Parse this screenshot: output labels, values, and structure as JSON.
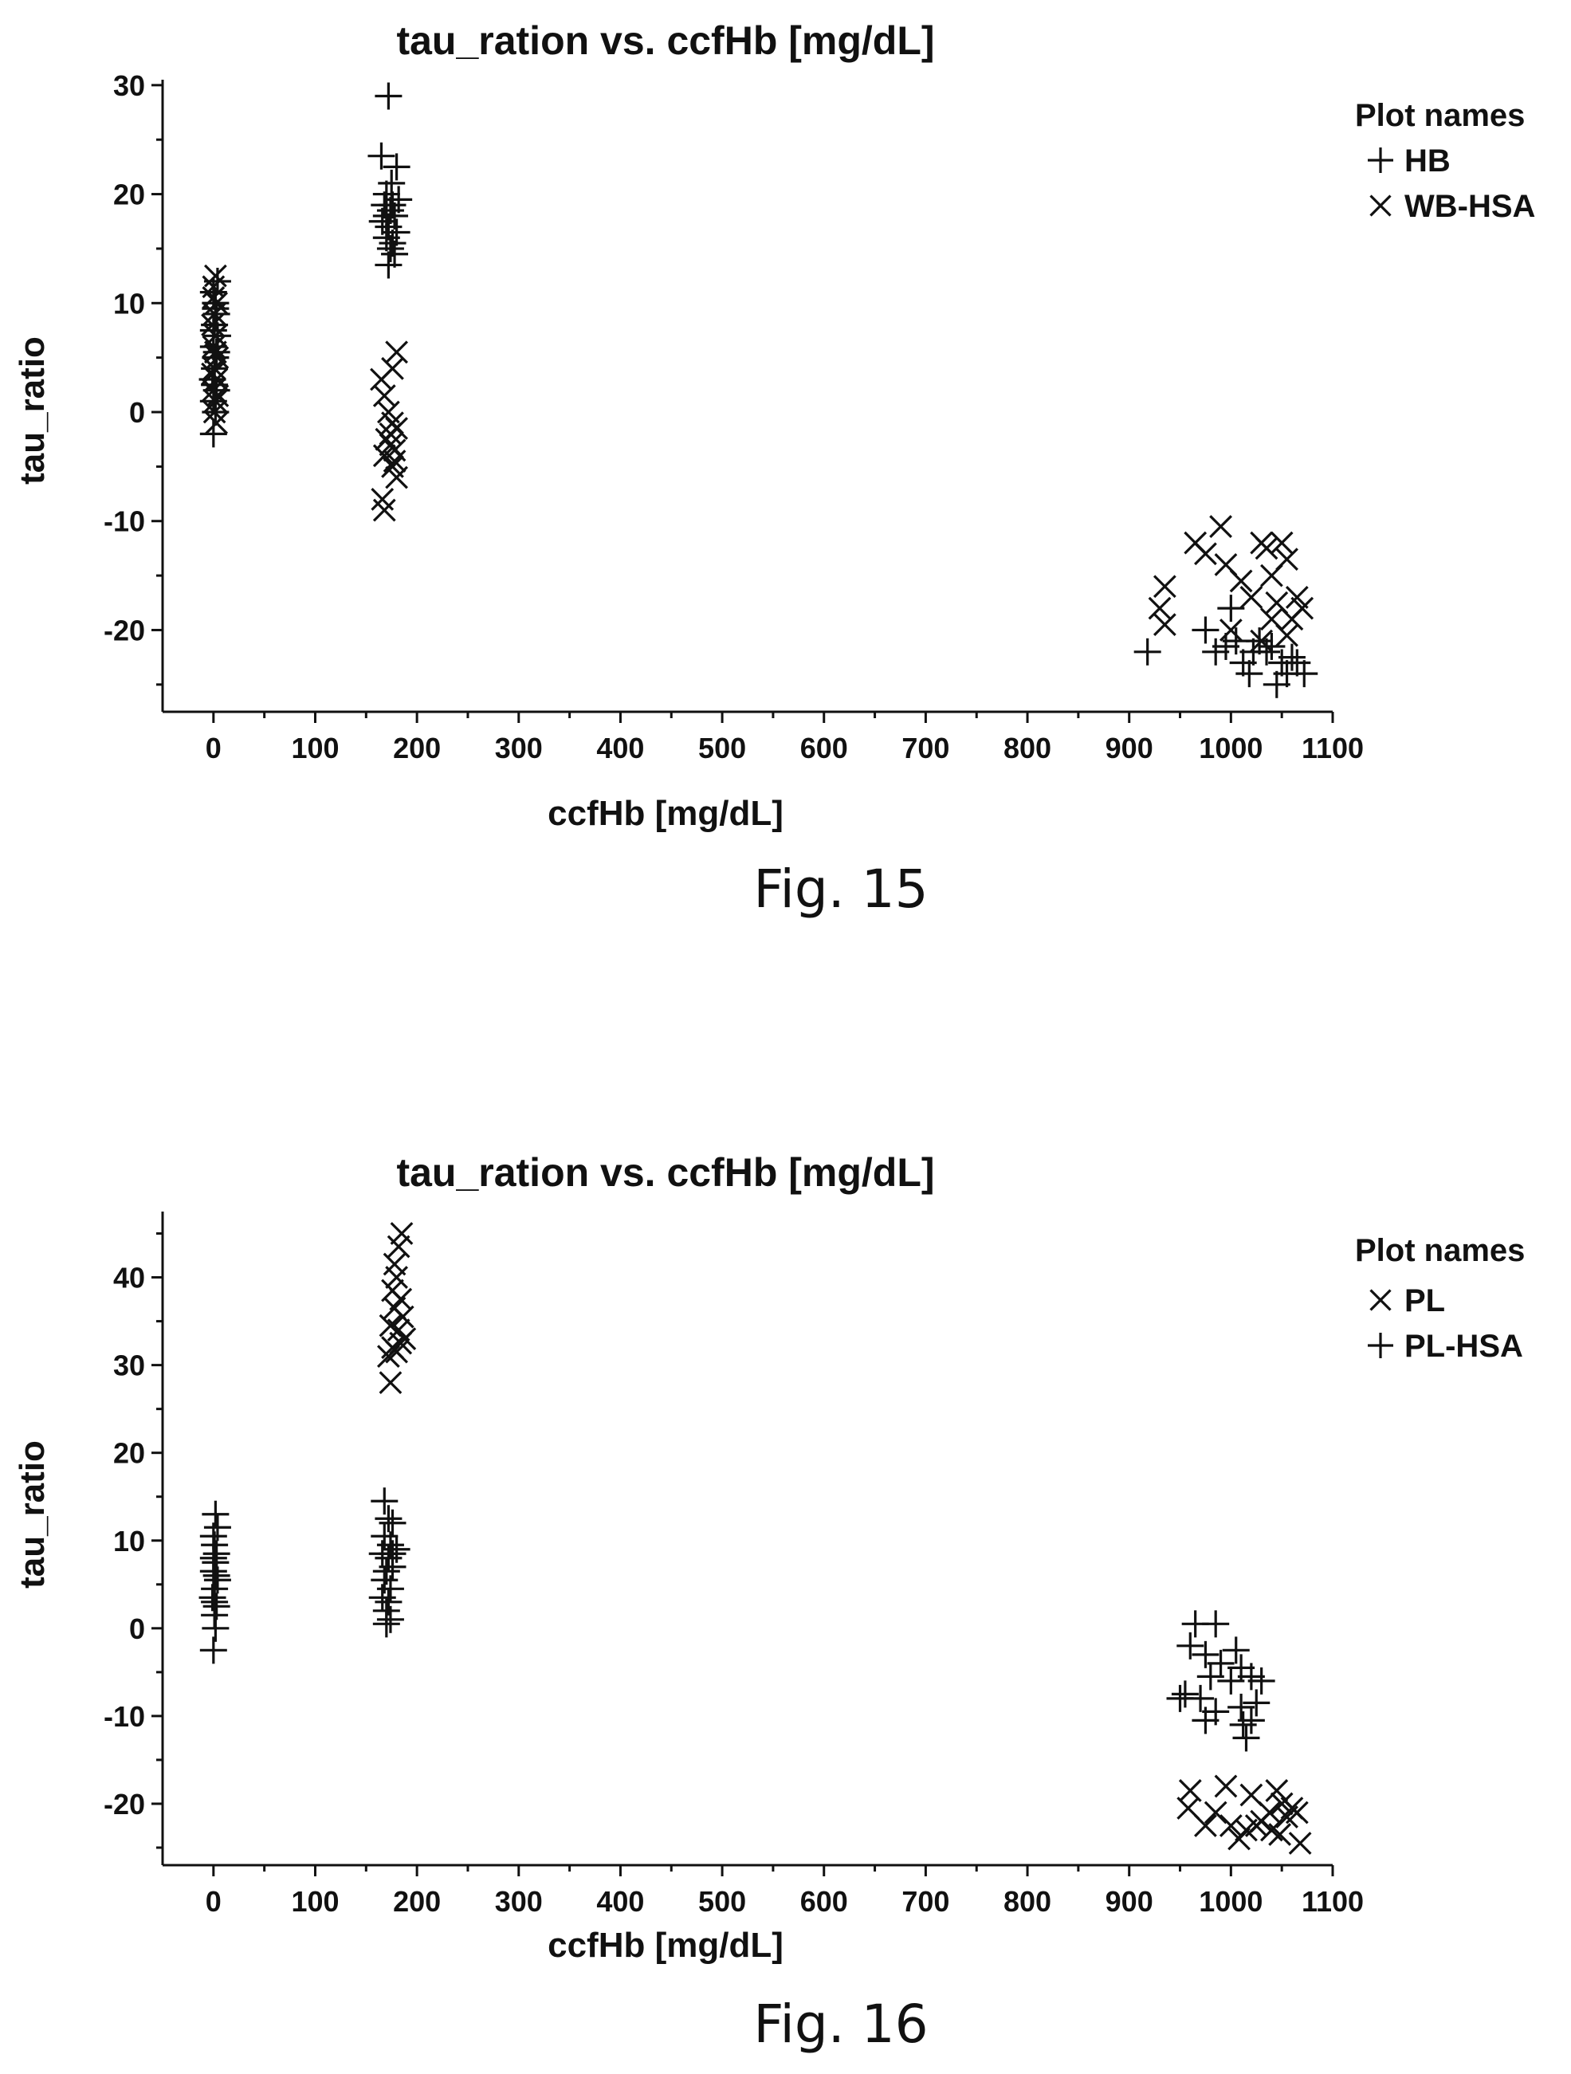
{
  "figures": [
    {
      "caption": "Fig. 15",
      "legend_title": "Plot names",
      "chart_data": {
        "type": "scatter",
        "title": "tau_ration vs. ccfHb [mg/dL]",
        "xlabel": "ccfHb [mg/dL]",
        "ylabel": "tau_ratio",
        "xlim": [
          -50,
          1100
        ],
        "ylim": [
          -27.5,
          30.5
        ],
        "xticks": [
          0,
          100,
          200,
          300,
          400,
          500,
          600,
          700,
          800,
          900,
          1000,
          1100
        ],
        "yticks": [
          -20,
          -10,
          0,
          10,
          20,
          30
        ],
        "legend_position": "right",
        "grid": false,
        "series": [
          {
            "name": "HB",
            "marker": "plus",
            "points": [
              [
                0,
                -2
              ],
              [
                2,
                0
              ],
              [
                0,
                1
              ],
              [
                3,
                2
              ],
              [
                -1,
                3
              ],
              [
                1,
                4
              ],
              [
                2,
                5
              ],
              [
                0,
                6
              ],
              [
                4,
                7
              ],
              [
                1,
                8
              ],
              [
                3,
                9
              ],
              [
                2,
                10
              ],
              [
                0,
                11
              ],
              [
                4,
                12
              ],
              [
                1,
                2.5
              ],
              [
                3,
                5.5
              ],
              [
                0,
                7.5
              ],
              [
                2,
                9.5
              ],
              [
                172,
                29
              ],
              [
                165,
                23.5
              ],
              [
                180,
                22.5
              ],
              [
                175,
                21
              ],
              [
                170,
                20
              ],
              [
                182,
                19.5
              ],
              [
                168,
                19
              ],
              [
                174,
                18.5
              ],
              [
                178,
                18
              ],
              [
                166,
                17.5
              ],
              [
                172,
                17
              ],
              [
                180,
                16.5
              ],
              [
                170,
                16
              ],
              [
                176,
                15.5
              ],
              [
                174,
                15
              ],
              [
                178,
                14.5
              ],
              [
                172,
                13.5
              ],
              [
                176,
                19
              ],
              [
                170,
                18
              ],
              [
                918,
                -22
              ],
              [
                975,
                -20
              ],
              [
                1000,
                -18
              ],
              [
                985,
                -22
              ],
              [
                1005,
                -21
              ],
              [
                1012,
                -23
              ],
              [
                1018,
                -24
              ],
              [
                1028,
                -21
              ],
              [
                1035,
                -22
              ],
              [
                1040,
                -21.5
              ],
              [
                1045,
                -25
              ],
              [
                1050,
                -23
              ],
              [
                1055,
                -24
              ],
              [
                1060,
                -22.5
              ],
              [
                1065,
                -23
              ],
              [
                1072,
                -24
              ],
              [
                995,
                -21.5
              ],
              [
                1022,
                -22
              ]
            ]
          },
          {
            "name": "WB-HSA",
            "marker": "cross",
            "points": [
              [
                2,
                12.5
              ],
              [
                0,
                11.5
              ],
              [
                3,
                10
              ],
              [
                1,
                9
              ],
              [
                -1,
                8
              ],
              [
                2,
                7
              ],
              [
                0,
                6
              ],
              [
                4,
                5
              ],
              [
                1,
                4
              ],
              [
                3,
                3
              ],
              [
                0,
                2
              ],
              [
                2,
                1
              ],
              [
                1,
                0
              ],
              [
                3,
                -1
              ],
              [
                0,
                10.5
              ],
              [
                2,
                5.5
              ],
              [
                4,
                1.5
              ],
              [
                -1,
                3.5
              ],
              [
                180,
                5.5
              ],
              [
                176,
                4
              ],
              [
                165,
                3
              ],
              [
                168,
                1.5
              ],
              [
                172,
                0
              ],
              [
                176,
                -1
              ],
              [
                180,
                -1.5
              ],
              [
                170,
                -2.5
              ],
              [
                174,
                -3
              ],
              [
                178,
                -3.5
              ],
              [
                168,
                -4
              ],
              [
                176,
                -5
              ],
              [
                180,
                -6
              ],
              [
                166,
                -8
              ],
              [
                168,
                -9
              ],
              [
                174,
                -2
              ],
              [
                178,
                -4.5
              ],
              [
                965,
                -12
              ],
              [
                990,
                -10.5
              ],
              [
                975,
                -13
              ],
              [
                995,
                -14
              ],
              [
                1030,
                -12
              ],
              [
                1035,
                -12.5
              ],
              [
                1050,
                -12
              ],
              [
                1055,
                -13.5
              ],
              [
                1040,
                -15
              ],
              [
                1010,
                -15.5
              ],
              [
                1020,
                -17
              ],
              [
                1045,
                -17.5
              ],
              [
                1065,
                -17
              ],
              [
                1070,
                -18
              ],
              [
                1060,
                -19
              ],
              [
                935,
                -16
              ],
              [
                930,
                -18
              ],
              [
                935,
                -19.5
              ],
              [
                1000,
                -20
              ],
              [
                1030,
                -21
              ],
              [
                1040,
                -19
              ],
              [
                1055,
                -20.5
              ]
            ]
          }
        ]
      }
    },
    {
      "caption": "Fig. 16",
      "legend_title": "Plot names",
      "chart_data": {
        "type": "scatter",
        "title": "tau_ration vs. ccfHb [mg/dL]",
        "xlabel": "ccfHb [mg/dL]",
        "ylabel": "tau_ratio",
        "xlim": [
          -50,
          1100
        ],
        "ylim": [
          -27,
          47.5
        ],
        "xticks": [
          0,
          100,
          200,
          300,
          400,
          500,
          600,
          700,
          800,
          900,
          1000,
          1100
        ],
        "yticks": [
          -20,
          -10,
          0,
          10,
          20,
          30,
          40
        ],
        "legend_position": "right",
        "grid": false,
        "series": [
          {
            "name": "PL",
            "marker": "cross",
            "points": [
              [
                185,
                45
              ],
              [
                182,
                43.5
              ],
              [
                178,
                41.5
              ],
              [
                180,
                40
              ],
              [
                176,
                38.5
              ],
              [
                184,
                37.5
              ],
              [
                178,
                36.5
              ],
              [
                186,
                35.5
              ],
              [
                174,
                34.5
              ],
              [
                182,
                34
              ],
              [
                188,
                33
              ],
              [
                176,
                32
              ],
              [
                180,
                31.5
              ],
              [
                172,
                31
              ],
              [
                184,
                32.5
              ],
              [
                174,
                28
              ],
              [
                960,
                -18.5
              ],
              [
                958,
                -20.5
              ],
              [
                995,
                -18
              ],
              [
                975,
                -22.5
              ],
              [
                985,
                -21
              ],
              [
                1000,
                -22.5
              ],
              [
                1008,
                -24
              ],
              [
                1015,
                -23
              ],
              [
                1020,
                -19
              ],
              [
                1030,
                -22
              ],
              [
                1038,
                -21
              ],
              [
                1045,
                -18.5
              ],
              [
                1050,
                -20
              ],
              [
                1055,
                -21.5
              ],
              [
                1060,
                -20.5
              ],
              [
                1065,
                -21
              ],
              [
                1068,
                -24.5
              ],
              [
                1048,
                -23.5
              ],
              [
                1040,
                -23
              ],
              [
                1025,
                -22.5
              ]
            ]
          },
          {
            "name": "PL-HSA",
            "marker": "plus",
            "points": [
              [
                0,
                -2.5
              ],
              [
                2,
                0
              ],
              [
                1,
                1.5
              ],
              [
                3,
                2.5
              ],
              [
                -1,
                3.5
              ],
              [
                1,
                4.5
              ],
              [
                4,
                5.5
              ],
              [
                0,
                6.5
              ],
              [
                2,
                7.5
              ],
              [
                3,
                8.5
              ],
              [
                1,
                9.5
              ],
              [
                0,
                10.5
              ],
              [
                4,
                11.5
              ],
              [
                2,
                13
              ],
              [
                1,
                3
              ],
              [
                3,
                6
              ],
              [
                0,
                8
              ],
              [
                168,
                14.5
              ],
              [
                172,
                12.5
              ],
              [
                176,
                12
              ],
              [
                168,
                10.5
              ],
              [
                174,
                9.5
              ],
              [
                180,
                9
              ],
              [
                166,
                8.5
              ],
              [
                172,
                8
              ],
              [
                176,
                7
              ],
              [
                170,
                6.5
              ],
              [
                168,
                5.5
              ],
              [
                174,
                4.5
              ],
              [
                166,
                3.5
              ],
              [
                172,
                3
              ],
              [
                170,
                2
              ],
              [
                174,
                1
              ],
              [
                170,
                0.5
              ],
              [
                176,
                8.5
              ],
              [
                965,
                0.5
              ],
              [
                985,
                0.5
              ],
              [
                960,
                -2
              ],
              [
                975,
                -3
              ],
              [
                990,
                -4
              ],
              [
                1005,
                -2.5
              ],
              [
                1010,
                -4.5
              ],
              [
                980,
                -5.5
              ],
              [
                1000,
                -6
              ],
              [
                1020,
                -5.5
              ],
              [
                1030,
                -6
              ],
              [
                955,
                -7.5
              ],
              [
                950,
                -8
              ],
              [
                970,
                -8
              ],
              [
                985,
                -9.5
              ],
              [
                1010,
                -9
              ],
              [
                1025,
                -8.5
              ],
              [
                975,
                -10.5
              ],
              [
                1012,
                -11
              ],
              [
                1020,
                -10.5
              ],
              [
                1015,
                -12.5
              ]
            ]
          }
        ]
      }
    }
  ]
}
